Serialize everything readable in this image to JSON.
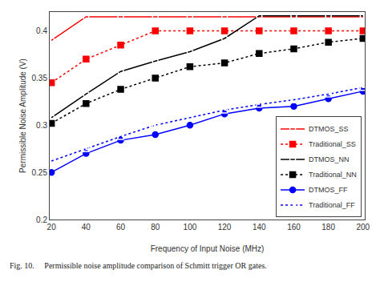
{
  "chart_data": {
    "type": "line",
    "x": [
      20,
      40,
      60,
      80,
      100,
      120,
      140,
      160,
      180,
      200
    ],
    "series": [
      {
        "name": "DTMOS_SS",
        "color": "red",
        "marker": "circle-open",
        "line_style": "solid",
        "values": [
          0.39,
          0.415,
          0.415,
          0.415,
          0.415,
          0.415,
          0.415,
          0.415,
          0.415,
          0.415
        ]
      },
      {
        "name": "Traditional_SS",
        "color": "red",
        "marker": "square",
        "line_style": "dotted",
        "values": [
          0.345,
          0.37,
          0.385,
          0.4,
          0.4,
          0.4,
          0.4,
          0.4,
          0.4,
          0.4
        ]
      },
      {
        "name": "DTMOS_NN",
        "color": "black",
        "marker": "circle-open",
        "line_style": "solid",
        "values": [
          0.308,
          0.333,
          0.357,
          0.368,
          0.378,
          0.392,
          0.416,
          0.416,
          0.416,
          0.416
        ]
      },
      {
        "name": "Traditional_NN",
        "color": "black",
        "marker": "square",
        "line_style": "dotted",
        "values": [
          0.302,
          0.323,
          0.338,
          0.35,
          0.362,
          0.366,
          0.376,
          0.381,
          0.388,
          0.392
        ]
      },
      {
        "name": "DTMOS_FF",
        "color": "blue",
        "marker": "circle",
        "line_style": "solid",
        "values": [
          0.25,
          0.27,
          0.284,
          0.29,
          0.3,
          0.312,
          0.318,
          0.32,
          0.328,
          0.336
        ]
      },
      {
        "name": "Traditional_FF",
        "color": "blue",
        "marker": "square-open",
        "line_style": "dotted",
        "values": [
          0.262,
          0.275,
          0.288,
          0.3,
          0.308,
          0.316,
          0.322,
          0.327,
          0.333,
          0.34
        ]
      }
    ],
    "xlabel": "Frequency of Input Noise (MHz)",
    "ylabel": "Permissible Noise Amplitude (V)",
    "xlim": [
      19,
      201
    ],
    "ylim": [
      0.2,
      0.42
    ],
    "xticks": [
      20,
      40,
      60,
      80,
      100,
      120,
      140,
      160,
      180,
      200
    ],
    "yticks": [
      0.2,
      0.25,
      0.3,
      0.35,
      0.4
    ],
    "legend": "lower right",
    "grid": false,
    "caption": "Fig. 10.     Permissible noise amplitude comparison of Schmitt trigger OR gates."
  }
}
